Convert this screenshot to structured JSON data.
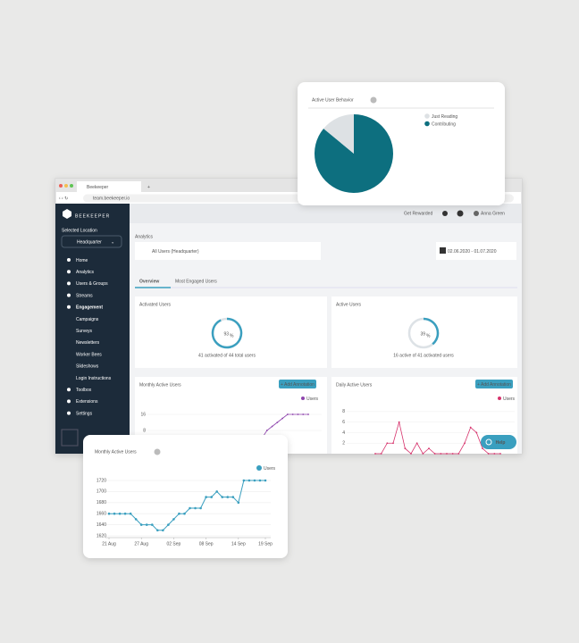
{
  "browser": {
    "tab_title": "Beekeeper",
    "new_tab": "+",
    "url": "team.beekeeper.io"
  },
  "sidebar": {
    "logo": "BEEKEEPER",
    "location_label": "Selected Location",
    "location": "Headquarter",
    "items": [
      "Home",
      "Analytics",
      "Users & Groups",
      "Streams",
      "Engagement",
      "Campaigns",
      "Surveys",
      "Newsletters",
      "Worker Bees",
      "Slideshows",
      "Login Instructions",
      "Toolbox",
      "Extensions",
      "Settings"
    ]
  },
  "topbar": {
    "rewarded": "Get Rewarded",
    "user": "Anna Green"
  },
  "main": {
    "section": "Analytics",
    "audience": "All Users (Headquarter)",
    "date_range": "02.06.2020 - 01.07.2020",
    "tabs": [
      "Overview",
      "Most Engaged Users"
    ],
    "help": "Help",
    "unit": "%",
    "activated": {
      "title": "Activated Users",
      "value": 93,
      "caption": "41 activated of 44 total users"
    },
    "active": {
      "title": "Active Users",
      "value": 39,
      "caption": "16 active of 41 activated users"
    },
    "annotation": "+ Add Annotation",
    "mini_monthly": {
      "title": "Monthly Active Users",
      "legend": "Users",
      "color": "#8e44ad",
      "ylim": [
        0,
        20
      ],
      "yticks": [
        8,
        16
      ],
      "values": [
        4,
        8,
        10,
        12,
        14,
        16,
        16,
        16,
        16,
        16
      ]
    },
    "mini_daily": {
      "title": "Daily Active Users",
      "legend": "Users",
      "color": "#d6336c",
      "ylim": [
        0,
        9
      ],
      "yticks": [
        2,
        4,
        6,
        8
      ],
      "values": [
        0,
        0,
        2,
        2,
        6,
        1,
        0,
        2,
        0,
        1,
        0,
        0,
        0,
        0,
        0,
        2,
        5,
        4,
        1,
        0,
        0,
        0
      ]
    }
  },
  "pie_card": {
    "chart_data": {
      "type": "pie",
      "title": "Active User Behavior",
      "categories": [
        "Contributing",
        "Just Reading"
      ],
      "values": [
        86,
        14
      ],
      "colors": [
        "#0d6f7f",
        "#dde1e4"
      ],
      "legend_order": [
        1,
        0
      ]
    }
  },
  "line_card": {
    "chart_data": {
      "type": "line",
      "title": "Monthly Active Users",
      "color": "#3a9fbf",
      "x": [
        "21 Aug",
        null,
        null,
        null,
        null,
        null,
        "27 Aug",
        null,
        null,
        null,
        null,
        null,
        "02 Sep",
        null,
        null,
        null,
        null,
        null,
        "08 Sep",
        null,
        null,
        null,
        null,
        null,
        "14 Sep",
        null,
        null,
        null,
        null,
        "19 Sep"
      ],
      "series": [
        {
          "name": "Users",
          "color": "#3a9fbf",
          "values": [
            1660,
            1660,
            1660,
            1660,
            1660,
            1650,
            1640,
            1640,
            1640,
            1630,
            1630,
            1640,
            1650,
            1660,
            1660,
            1670,
            1670,
            1670,
            1690,
            1690,
            1700,
            1690,
            1690,
            1690,
            1680,
            1720,
            1720,
            1720,
            1720,
            1720
          ]
        }
      ],
      "ylim": [
        1620,
        1720
      ],
      "yticks": [
        1620,
        1640,
        1660,
        1680,
        1700,
        1720
      ],
      "grid": true
    }
  }
}
